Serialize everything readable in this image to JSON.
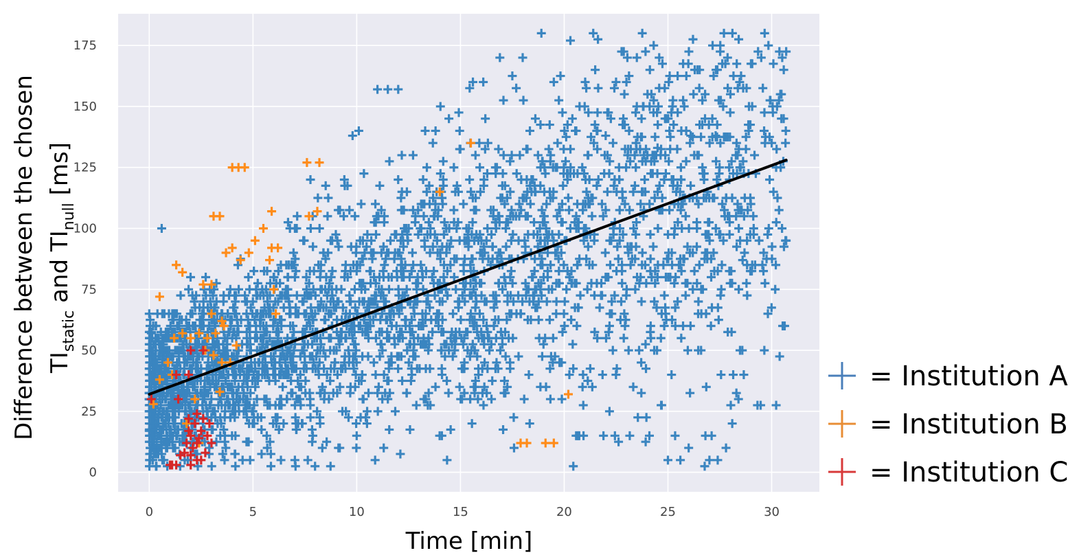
{
  "chart_data": {
    "type": "scatter",
    "xlabel": "Time [min]",
    "ylabel": {
      "line1": "Difference between the chosen",
      "line2_parts": [
        "TI",
        "static",
        " and TI",
        "null",
        " [ms]"
      ]
    },
    "xlim": [
      -1.5,
      32.3
    ],
    "ylim": [
      -8,
      188
    ],
    "x_ticks": [
      0,
      5,
      10,
      15,
      20,
      25,
      30
    ],
    "y_ticks": [
      0,
      25,
      50,
      75,
      100,
      125,
      150,
      175
    ],
    "grid": true,
    "legend_placement": "right",
    "series": [
      {
        "name": "= Institution A",
        "color": "#4a7fba",
        "marker_color": "#3a85c0",
        "marker": "plus",
        "generated_from": {
          "trend": [
            [
              0,
              32
            ],
            [
              30.7,
              128
            ]
          ],
          "x_range": [
            0,
            30.7
          ],
          "y_range": [
            2,
            180
          ],
          "count": 3200
        },
        "points": [
          [
            18.9,
            180
          ],
          [
            21.4,
            180
          ],
          [
            20.3,
            177
          ],
          [
            16.9,
            170
          ],
          [
            18.0,
            170
          ],
          [
            11.0,
            157
          ],
          [
            11.5,
            157
          ],
          [
            12.0,
            157
          ],
          [
            22.5,
            160
          ],
          [
            23.0,
            160
          ],
          [
            19.5,
            160
          ],
          [
            15.6,
            160
          ],
          [
            16.1,
            160
          ],
          [
            23.5,
            150
          ],
          [
            23.8,
            150
          ],
          [
            30.7,
            95
          ],
          [
            30.2,
            85
          ],
          [
            28.6,
            87
          ],
          [
            27.6,
            85
          ],
          [
            28.4,
            30
          ],
          [
            28.1,
            20
          ],
          [
            25.0,
            5
          ],
          [
            25.6,
            5
          ],
          [
            26.0,
            10
          ],
          [
            27.0,
            5
          ],
          [
            27.4,
            5
          ],
          [
            27.8,
            10
          ],
          [
            0.6,
            100
          ],
          [
            0.1,
            57
          ],
          [
            0.0,
            17
          ],
          [
            25.2,
            85
          ],
          [
            25.6,
            85
          ],
          [
            26.2,
            90
          ],
          [
            27.2,
            90
          ],
          [
            26.2,
            75
          ],
          [
            24.5,
            80
          ],
          [
            24.9,
            80
          ],
          [
            26.1,
            138
          ],
          [
            27.3,
            138
          ],
          [
            24.5,
            133
          ],
          [
            22.0,
            138
          ],
          [
            21.6,
            140
          ],
          [
            13.8,
            140
          ],
          [
            13.3,
            140
          ],
          [
            9.8,
            138
          ],
          [
            10.1,
            140
          ]
        ]
      },
      {
        "name": "= Institution B",
        "color": "#e88d35",
        "marker_color": "#ff8c1a",
        "marker": "plus",
        "points": [
          [
            4.0,
            125
          ],
          [
            4.3,
            125
          ],
          [
            4.6,
            125
          ],
          [
            15.5,
            135
          ],
          [
            3.1,
            105
          ],
          [
            3.4,
            105
          ],
          [
            5.9,
            107
          ],
          [
            7.7,
            105
          ],
          [
            8.1,
            107
          ],
          [
            7.6,
            127
          ],
          [
            8.2,
            127
          ],
          [
            3.7,
            90
          ],
          [
            4.0,
            92
          ],
          [
            4.4,
            87
          ],
          [
            4.8,
            90
          ],
          [
            1.3,
            85
          ],
          [
            1.6,
            82
          ],
          [
            5.8,
            87
          ],
          [
            6.2,
            92
          ],
          [
            5.1,
            95
          ],
          [
            5.5,
            100
          ],
          [
            5.9,
            92
          ],
          [
            2.6,
            77
          ],
          [
            3.0,
            77
          ],
          [
            0.5,
            72
          ],
          [
            0.9,
            45
          ],
          [
            1.2,
            55
          ],
          [
            1.6,
            57
          ],
          [
            2.0,
            55
          ],
          [
            2.4,
            57
          ],
          [
            2.8,
            55
          ],
          [
            3.2,
            57
          ],
          [
            3.6,
            60
          ],
          [
            2.7,
            50
          ],
          [
            3.1,
            48
          ],
          [
            3.5,
            45
          ],
          [
            3.0,
            65
          ],
          [
            3.5,
            62
          ],
          [
            6.1,
            65
          ],
          [
            6.0,
            75
          ],
          [
            20.2,
            32
          ],
          [
            17.9,
            12
          ],
          [
            18.2,
            12
          ],
          [
            19.1,
            12
          ],
          [
            19.5,
            12
          ],
          [
            0.2,
            28
          ],
          [
            0.5,
            38
          ],
          [
            1.1,
            40
          ],
          [
            3.4,
            33
          ],
          [
            2.2,
            30
          ],
          [
            1.8,
            20
          ],
          [
            2.4,
            12
          ],
          [
            3.9,
            45
          ],
          [
            4.2,
            52
          ],
          [
            14.0,
            115
          ]
        ]
      },
      {
        "name": "= Institution C",
        "color": "#d83a3a",
        "marker_color": "#d62728",
        "marker": "plus",
        "points": [
          [
            0.1,
            30
          ],
          [
            1.3,
            40
          ],
          [
            1.9,
            40
          ],
          [
            2.0,
            50
          ],
          [
            2.6,
            50
          ],
          [
            1.4,
            30
          ],
          [
            1.9,
            22
          ],
          [
            2.2,
            20
          ],
          [
            2.5,
            17
          ],
          [
            2.8,
            15
          ],
          [
            2.3,
            24
          ],
          [
            2.6,
            22
          ],
          [
            2.9,
            20
          ],
          [
            2.0,
            15
          ],
          [
            2.3,
            12
          ],
          [
            1.8,
            12
          ],
          [
            2.1,
            10
          ],
          [
            1.7,
            8
          ],
          [
            2.0,
            7
          ],
          [
            2.3,
            5
          ],
          [
            1.1,
            3
          ],
          [
            1.3,
            3
          ],
          [
            2.0,
            3
          ],
          [
            2.5,
            5
          ],
          [
            1.5,
            7
          ],
          [
            1.0,
            3
          ],
          [
            3.0,
            12
          ],
          [
            2.7,
            8
          ],
          [
            2.4,
            14
          ],
          [
            1.9,
            17
          ]
        ]
      }
    ],
    "trend_line": {
      "x": [
        0,
        30.7
      ],
      "y": [
        32,
        128
      ],
      "color": "#000000"
    },
    "colors": {
      "plot_background": "#eaeaf2",
      "grid": "#ffffff",
      "tick_text": "#444444"
    }
  }
}
